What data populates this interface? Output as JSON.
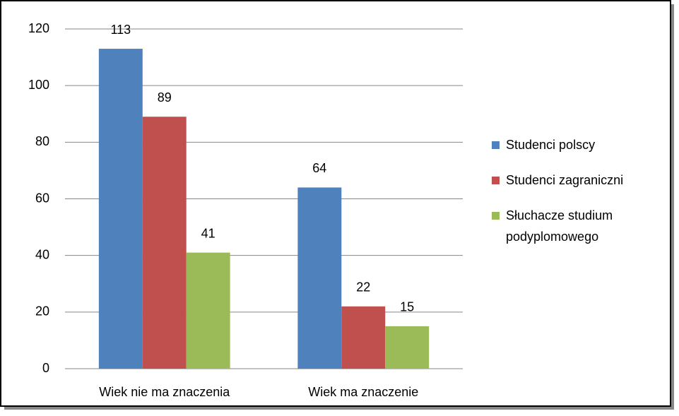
{
  "chart_data": {
    "type": "bar",
    "categories": [
      "Wiek nie ma znaczenia",
      "Wiek ma znaczenie"
    ],
    "series": [
      {
        "name": "Studenci polscy",
        "color": "#4f81bd",
        "values": [
          113,
          64
        ]
      },
      {
        "name": "Studenci zagraniczni",
        "color": "#c0504d",
        "values": [
          89,
          22
        ]
      },
      {
        "name": "Słuchacze studium podyplomowego",
        "color": "#9bbb59",
        "values": [
          41,
          15
        ]
      }
    ],
    "ylim": [
      0,
      120
    ],
    "yticks": [
      0,
      20,
      40,
      60,
      80,
      100,
      120
    ],
    "grid": true,
    "legend": "right"
  }
}
